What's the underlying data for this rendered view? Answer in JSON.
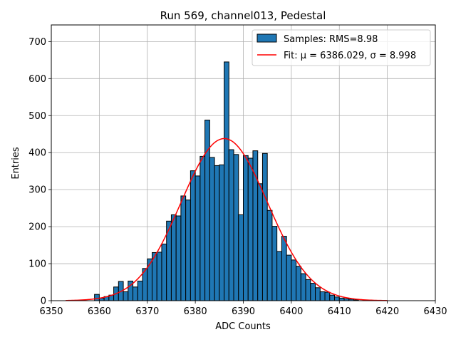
{
  "chart_data": {
    "type": "bar",
    "title": "Run 569, channel013, Pedestal",
    "xlabel": "ADC Counts",
    "ylabel": "Entries",
    "xlim": [
      6350,
      6430
    ],
    "ylim": [
      0,
      745
    ],
    "xticks": [
      6350,
      6360,
      6370,
      6380,
      6390,
      6400,
      6410,
      6420,
      6430
    ],
    "yticks": [
      0,
      100,
      200,
      300,
      400,
      500,
      600,
      700
    ],
    "grid": true,
    "legend_position": "top-right",
    "bin_width": 1,
    "bins": {
      "x": [
        6359,
        6360,
        6361,
        6362,
        6363,
        6364,
        6365,
        6366,
        6367,
        6368,
        6369,
        6370,
        6371,
        6372,
        6373,
        6374,
        6375,
        6376,
        6377,
        6378,
        6379,
        6380,
        6381,
        6382,
        6383,
        6384,
        6385,
        6386,
        6387,
        6388,
        6389,
        6390,
        6391,
        6392,
        6393,
        6394,
        6395,
        6396,
        6397,
        6398,
        6399,
        6400,
        6401,
        6402,
        6403,
        6404,
        6405,
        6406,
        6407,
        6408,
        6409,
        6410,
        6411,
        6412,
        6413
      ],
      "values": [
        17,
        7,
        11,
        15,
        37,
        52,
        24,
        53,
        37,
        53,
        87,
        113,
        130,
        131,
        153,
        215,
        232,
        229,
        283,
        272,
        351,
        337,
        390,
        488,
        387,
        365,
        367,
        645,
        408,
        395,
        232,
        392,
        385,
        405,
        316,
        398,
        244,
        201,
        133,
        174,
        123,
        110,
        93,
        73,
        57,
        47,
        35,
        24,
        23,
        15,
        10,
        7,
        5,
        4,
        2
      ]
    },
    "series": [
      {
        "name": "Samples: RMS=8.98",
        "kind": "histogram",
        "color": "#1f77b4",
        "edgecolor": "#000000"
      },
      {
        "name": "Fit: μ = 6386.029, σ = 8.998",
        "kind": "line",
        "color": "#ff0000",
        "mu": 6386.029,
        "sigma": 8.998,
        "amplitude": 438,
        "x_range": [
          6353,
          6420
        ]
      }
    ]
  }
}
